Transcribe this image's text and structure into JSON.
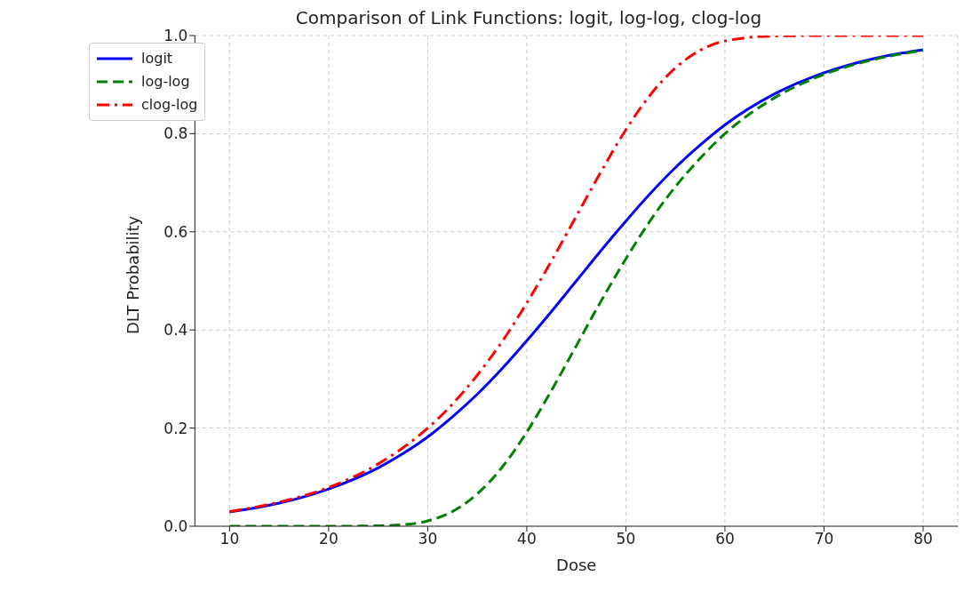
{
  "chart_data": {
    "type": "line",
    "title": "Comparison of Link Functions: logit, log-log, clog-log",
    "xlabel": "Dose",
    "ylabel": "DLT Probability",
    "x": [
      10,
      15,
      20,
      25,
      27.5,
      30,
      32.5,
      35,
      37.5,
      40,
      42.5,
      45,
      47.5,
      50,
      52.5,
      55,
      57.5,
      60,
      65,
      70,
      75,
      80
    ],
    "series": [
      {
        "name": "logit",
        "color": "#0000ff",
        "line_style": "solid",
        "values": [
          0.029,
          0.047,
          0.076,
          0.119,
          0.148,
          0.182,
          0.223,
          0.269,
          0.321,
          0.378,
          0.438,
          0.5,
          0.562,
          0.622,
          0.679,
          0.731,
          0.777,
          0.818,
          0.881,
          0.924,
          0.953,
          0.971
        ]
      },
      {
        "name": "log-log",
        "color": "#008000",
        "line_style": "dashed",
        "values": [
          0,
          0,
          0,
          0.001,
          0.003,
          0.011,
          0.03,
          0.066,
          0.12,
          0.192,
          0.277,
          0.368,
          0.459,
          0.545,
          0.624,
          0.692,
          0.75,
          0.8,
          0.873,
          0.921,
          0.951,
          0.97
        ]
      },
      {
        "name": "clog-log",
        "color": "#ff0000",
        "line_style": "dashdot",
        "values": [
          0.03,
          0.049,
          0.079,
          0.127,
          0.16,
          0.2,
          0.249,
          0.308,
          0.376,
          0.455,
          0.541,
          0.632,
          0.723,
          0.808,
          0.88,
          0.934,
          0.97,
          0.989,
          0.999,
          1.0,
          1.0,
          1.0
        ]
      }
    ],
    "xlim": [
      6.5,
      83.5
    ],
    "xticks": [
      10,
      20,
      30,
      40,
      50,
      60,
      70,
      80
    ],
    "ylim": [
      0,
      1
    ],
    "yticks": [
      {
        "value": 0,
        "label": "0.0"
      },
      0.2,
      0.4,
      0.6,
      0.8,
      {
        "value": 1,
        "label": "1.0"
      }
    ],
    "grid": true,
    "legend": "top left",
    "marker": "none"
  }
}
